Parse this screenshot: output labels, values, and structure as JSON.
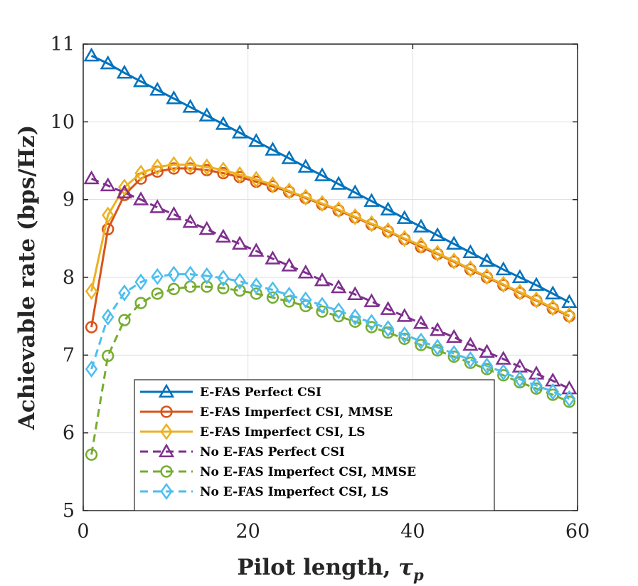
{
  "chart_data": {
    "type": "line",
    "title": "",
    "xlabel": "Pilot length, ",
    "xlabel_symbol": "τ",
    "xlabel_subscript": "p",
    "ylabel": "Achievable rate (bps/Hz)",
    "xlim": [
      0,
      60
    ],
    "ylim": [
      5,
      11
    ],
    "xticks": [
      0,
      20,
      40,
      60
    ],
    "yticks": [
      5,
      6,
      7,
      8,
      9,
      10,
      11
    ],
    "grid": true,
    "legend_position": "bottom-center",
    "x": [
      1,
      3,
      5,
      7,
      9,
      11,
      13,
      15,
      17,
      19,
      21,
      23,
      25,
      27,
      29,
      31,
      33,
      35,
      37,
      39,
      41,
      43,
      45,
      47,
      49,
      51,
      53,
      55,
      57,
      59
    ],
    "series": [
      {
        "name": "E-FAS Perfect CSI",
        "color": "#0072BD",
        "line_style": "solid",
        "marker": "triangle",
        "values": [
          10.85,
          10.75,
          10.63,
          10.52,
          10.41,
          10.3,
          10.19,
          10.08,
          9.97,
          9.86,
          9.75,
          9.64,
          9.53,
          9.42,
          9.31,
          9.2,
          9.09,
          8.98,
          8.87,
          8.76,
          8.65,
          8.54,
          8.43,
          8.32,
          8.21,
          8.1,
          8.0,
          7.9,
          7.79,
          7.68
        ]
      },
      {
        "name": "E-FAS Imperfect CSI, MMSE",
        "color": "#D95319",
        "line_style": "solid",
        "marker": "circle",
        "values": [
          7.36,
          8.62,
          9.06,
          9.27,
          9.36,
          9.4,
          9.4,
          9.38,
          9.34,
          9.29,
          9.23,
          9.17,
          9.1,
          9.02,
          8.94,
          8.86,
          8.77,
          8.68,
          8.59,
          8.49,
          8.39,
          8.3,
          8.2,
          8.1,
          8.0,
          7.9,
          7.8,
          7.7,
          7.6,
          7.5
        ]
      },
      {
        "name": "E-FAS Imperfect CSI, LS",
        "color": "#EDB120",
        "line_style": "solid",
        "marker": "diamond",
        "values": [
          7.82,
          8.8,
          9.16,
          9.34,
          9.42,
          9.45,
          9.45,
          9.42,
          9.38,
          9.32,
          9.26,
          9.19,
          9.11,
          9.03,
          8.95,
          8.87,
          8.78,
          8.69,
          8.6,
          8.5,
          8.41,
          8.31,
          8.21,
          8.11,
          8.01,
          7.91,
          7.81,
          7.71,
          7.61,
          7.51
        ]
      },
      {
        "name": "No E-FAS Perfect CSI",
        "color": "#7E2F8E",
        "line_style": "dashed",
        "marker": "triangle",
        "values": [
          9.27,
          9.18,
          9.09,
          9.0,
          8.9,
          8.81,
          8.71,
          8.62,
          8.52,
          8.43,
          8.34,
          8.24,
          8.15,
          8.06,
          7.96,
          7.87,
          7.78,
          7.69,
          7.59,
          7.5,
          7.41,
          7.32,
          7.23,
          7.13,
          7.04,
          6.95,
          6.85,
          6.76,
          6.67,
          6.57
        ]
      },
      {
        "name": "No E-FAS Imperfect CSI, MMSE",
        "color": "#77AC30",
        "line_style": "dashed",
        "marker": "circle",
        "values": [
          5.72,
          6.99,
          7.45,
          7.67,
          7.79,
          7.85,
          7.88,
          7.88,
          7.86,
          7.83,
          7.79,
          7.74,
          7.69,
          7.63,
          7.56,
          7.5,
          7.43,
          7.36,
          7.29,
          7.21,
          7.13,
          7.06,
          6.98,
          6.9,
          6.82,
          6.74,
          6.65,
          6.57,
          6.49,
          6.4
        ]
      },
      {
        "name": "No E-FAS Imperfect CSI, LS",
        "color": "#4DBEEE",
        "line_style": "dashed",
        "marker": "diamond",
        "values": [
          6.82,
          7.49,
          7.8,
          7.94,
          8.01,
          8.04,
          8.04,
          8.02,
          7.99,
          7.95,
          7.89,
          7.84,
          7.77,
          7.71,
          7.64,
          7.57,
          7.49,
          7.42,
          7.34,
          7.26,
          7.18,
          7.1,
          7.02,
          6.94,
          6.86,
          6.78,
          6.69,
          6.61,
          6.53,
          6.44
        ]
      }
    ]
  }
}
